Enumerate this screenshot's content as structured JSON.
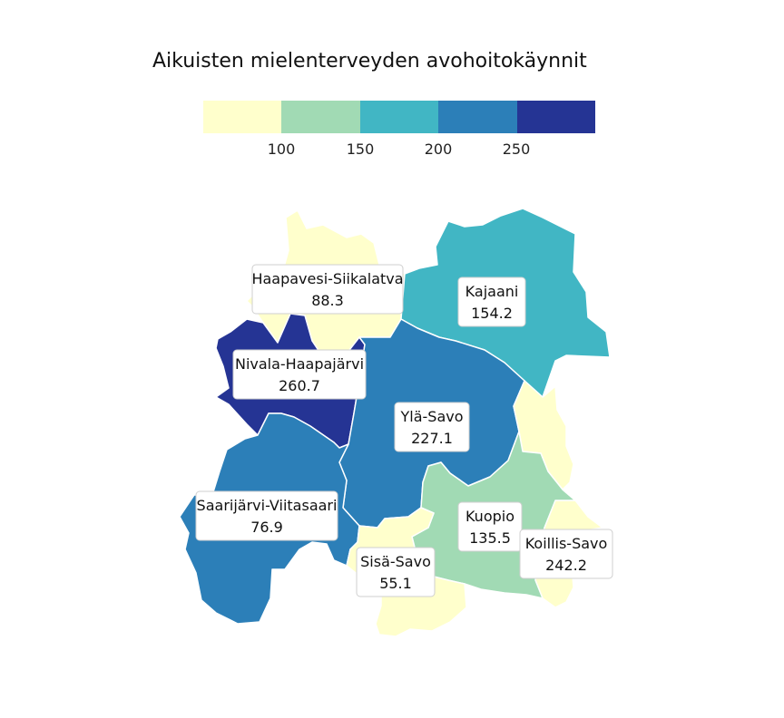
{
  "title": "Aikuisten mielenterveyden avohoitokäynnit",
  "legend": {
    "colors": [
      "#ffffcc",
      "#a1dab4",
      "#41b6c4",
      "#2c7fb8",
      "#253494"
    ],
    "ticks": [
      "100",
      "150",
      "200",
      "250"
    ]
  },
  "regions": [
    {
      "id": "haapavesi-siikalatva",
      "name": "Haapavesi-Siikalatva",
      "value": "88.3",
      "color": "#ffffcc"
    },
    {
      "id": "kajaani",
      "name": "Kajaani",
      "value": "154.2",
      "color": "#41b6c4"
    },
    {
      "id": "nivala-haapajarvi",
      "name": "Nivala-Haapajärvi",
      "value": "260.7",
      "color": "#253494"
    },
    {
      "id": "yla-savo",
      "name": "Ylä-Savo",
      "value": "227.1",
      "color": "#2c7fb8"
    },
    {
      "id": "saarijarvi-viitasaari",
      "name": "Saarijärvi-Viitasaari",
      "value": "76.9",
      "color": "#ffffcc"
    },
    {
      "id": "kuopio",
      "name": "Kuopio",
      "value": "135.5",
      "color": "#a1dab4"
    },
    {
      "id": "koillis-savo",
      "name": "Koillis-Savo",
      "value": "242.2",
      "color": "#2c7fb8"
    },
    {
      "id": "sisa-savo",
      "name": "Sisä-Savo",
      "value": "55.1",
      "color": "#ffffcc"
    }
  ]
}
